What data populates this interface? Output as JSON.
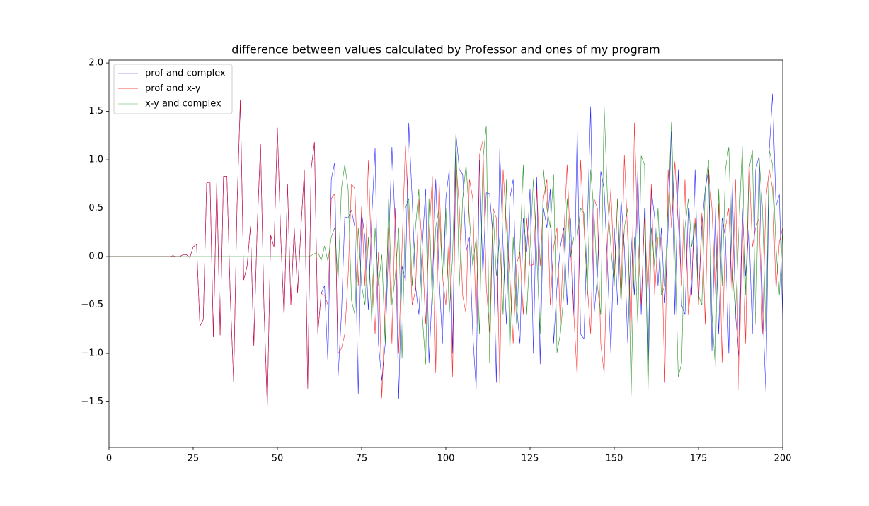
{
  "chart_data": {
    "type": "line",
    "title": "difference between values calculated by Professor and ones of my program",
    "x": [
      0,
      1,
      2,
      3,
      4,
      5,
      6,
      7,
      8,
      9,
      10,
      11,
      12,
      13,
      14,
      15,
      16,
      17,
      18,
      19,
      20,
      21,
      22,
      23,
      24,
      25,
      26,
      27,
      28,
      29,
      30,
      31,
      32,
      33,
      34,
      35,
      36,
      37,
      38,
      39,
      40,
      41,
      42,
      43,
      44,
      45,
      46,
      47,
      48,
      49,
      50,
      51,
      52,
      53,
      54,
      55,
      56,
      57,
      58,
      59,
      60,
      61,
      62,
      63,
      64,
      65,
      66,
      67,
      68,
      69,
      70,
      71,
      72,
      73,
      74,
      75,
      76,
      77,
      78,
      79,
      80,
      81,
      82,
      83,
      84,
      85,
      86,
      87,
      88,
      89,
      90,
      91,
      92,
      93,
      94,
      95,
      96,
      97,
      98,
      99,
      100,
      101,
      102,
      103,
      104,
      105,
      106,
      107,
      108,
      109,
      110,
      111,
      112,
      113,
      114,
      115,
      116,
      117,
      118,
      119,
      120,
      121,
      122,
      123,
      124,
      125,
      126,
      127,
      128,
      129,
      130,
      131,
      132,
      133,
      134,
      135,
      136,
      137,
      138,
      139,
      140,
      141,
      142,
      143,
      144,
      145,
      146,
      147,
      148,
      149,
      150,
      151,
      152,
      153,
      154,
      155,
      156,
      157,
      158,
      159,
      160,
      161,
      162,
      163,
      164,
      165,
      166,
      167,
      168,
      169,
      170,
      171,
      172,
      173,
      174,
      175,
      176,
      177,
      178,
      179,
      180,
      181,
      182,
      183,
      184,
      185,
      186,
      187,
      188,
      189,
      190,
      191,
      192,
      193,
      194,
      195,
      196,
      197,
      198,
      199,
      200
    ],
    "series": [
      {
        "name": "prof and complex",
        "color": "#0000ff",
        "values": [
          0,
          0,
          0,
          0,
          0,
          0,
          0,
          0,
          0,
          0,
          0,
          0,
          0,
          0,
          0,
          0,
          0,
          0,
          0,
          0.01,
          0,
          0,
          0.02,
          0.02,
          -0.01,
          0.1,
          0.13,
          -0.72,
          -0.65,
          0.76,
          0.77,
          -0.83,
          0.78,
          -0.81,
          0.83,
          0.83,
          -0.4,
          -1.29,
          0.5,
          1.62,
          -0.24,
          -0.1,
          0.31,
          -0.92,
          0.3,
          1.16,
          -0.5,
          -1.55,
          0.22,
          0.1,
          1.33,
          0.2,
          -0.63,
          0.75,
          -0.5,
          0.3,
          -0.37,
          0.3,
          0.89,
          -1.36,
          0.9,
          1.18,
          -0.79,
          -0.38,
          -0.3,
          -1.1,
          0.8,
          0.97,
          -1.25,
          -0.6,
          0.41,
          0.4,
          0.48,
          0.3,
          -1.42,
          0.45,
          0.2,
          -0.55,
          0.4,
          1.12,
          -0.9,
          -1.28,
          -0.9,
          0.1,
          1.13,
          0.3,
          -1.47,
          -0.1,
          -0.25,
          1.38,
          0.6,
          -0.3,
          -0.6,
          0.1,
          0.7,
          -1.1,
          -0.3,
          0.8,
          -0.2,
          -0.9,
          0.6,
          0.9,
          -1.0,
          1.27,
          0.9,
          0.85,
          0.05,
          0.2,
          -0.8,
          -1.37,
          1.0,
          -0.2,
          0.66,
          0.65,
          0.2,
          -1.3,
          1.11,
          0.1,
          -0.7,
          0.6,
          0.8,
          -0.5,
          -0.9,
          0.4,
          0.05,
          0.7,
          -1.0,
          0.82,
          -1.11,
          0.5,
          0.3,
          0.7,
          -0.9,
          -0.3,
          0.1,
          0.3,
          -0.5,
          0.4,
          -0.6,
          1.33,
          -0.8,
          -0.85,
          0.3,
          1.55,
          -0.6,
          -0.2,
          0.88,
          0.7,
          -0.1,
          -1.0,
          0.3,
          -0.5,
          0.6,
          0.1,
          -0.89,
          0.2,
          -0.4,
          0.9,
          -0.6,
          0.5,
          -1.19,
          0.7,
          0.4,
          -0.3,
          0.3,
          -0.48,
          0.3,
          1.3,
          -0.6,
          0.9,
          -0.5,
          -0.6,
          0.5,
          -0.4,
          0.9,
          -0.44,
          0.3,
          0.7,
          0.9,
          -0.97,
          0.5,
          -0.8,
          0.4,
          0.2,
          -1.0,
          0.8,
          -0.6,
          -1.03,
          0.5,
          -0.2,
          0.3,
          -0.8,
          0.9,
          1.04,
          -0.5,
          -1.39,
          1.1,
          1.68,
          0.52,
          0.64,
          -0.65
        ]
      },
      {
        "name": "prof and x-y",
        "color": "#ff0000",
        "values": [
          0,
          0,
          0,
          0,
          0,
          0,
          0,
          0,
          0,
          0,
          0,
          0,
          0,
          0,
          0,
          0,
          0,
          0,
          0,
          0.01,
          0,
          0,
          0.02,
          0.02,
          -0.01,
          0.1,
          0.13,
          -0.72,
          -0.65,
          0.76,
          0.77,
          -0.83,
          0.78,
          -0.81,
          0.83,
          0.83,
          -0.4,
          -1.29,
          0.5,
          1.62,
          -0.24,
          -0.1,
          0.31,
          -0.92,
          0.3,
          1.16,
          -0.5,
          -1.55,
          0.22,
          0.1,
          1.33,
          0.2,
          -0.63,
          0.75,
          -0.5,
          0.3,
          -0.37,
          0.3,
          0.89,
          -1.36,
          0.9,
          1.18,
          -0.79,
          -0.38,
          -0.4,
          -0.5,
          0.6,
          0.65,
          -1.0,
          -0.95,
          -0.8,
          -0.2,
          0.75,
          0.7,
          -0.3,
          0.52,
          -0.3,
          0.99,
          -0.1,
          -0.8,
          0.05,
          -1.46,
          -0.5,
          0.3,
          -0.9,
          0.5,
          -1.0,
          0.1,
          1.15,
          0.4,
          -0.5,
          -0.35,
          0.6,
          0.1,
          -0.7,
          0.2,
          0.83,
          -1.2,
          0.8,
          -0.2,
          -0.5,
          0.2,
          -1.24,
          1.0,
          0.5,
          -0.4,
          -0.59,
          0.8,
          0.6,
          -0.7,
          1.05,
          1.2,
          -0.3,
          -0.78,
          0.5,
          0.4,
          -1.31,
          0.9,
          0.3,
          -0.2,
          -0.9,
          -0.08,
          0.05,
          -0.6,
          0.4,
          -0.1,
          -0.08,
          0.7,
          -0.1,
          0.6,
          0.8,
          -0.5,
          0.1,
          0.3,
          -0.7,
          0.2,
          0.95,
          0.1,
          -0.6,
          -1.25,
          1.0,
          0.3,
          -0.3,
          -0.8,
          0.6,
          0.5,
          -0.9,
          -1.21,
          0.2,
          0.7,
          -0.2,
          0.6,
          -0.5,
          1.05,
          0.2,
          -0.8,
          1.38,
          0.2,
          -0.5,
          0.4,
          -0.4,
          0.75,
          -0.4,
          0.2,
          0.2,
          -1.3,
          0.9,
          0.3,
          0.98,
          0.35,
          -0.3,
          0.8,
          -0.6,
          -0.2,
          0.4,
          -0.5,
          0.45,
          -0.7,
          0.9,
          0.5,
          -0.4,
          0.55,
          -1.09,
          0.3,
          0.5,
          -0.4,
          0.8,
          -1.38,
          0.4,
          -0.9,
          1.0,
          0.1,
          0.3,
          0.4,
          -0.8,
          0.6,
          0.9,
          0.7,
          -0.35,
          0.15,
          0.3
        ]
      },
      {
        "name": "x-y and complex",
        "color": "#008000",
        "values": [
          0,
          0,
          0,
          0,
          0,
          0,
          0,
          0,
          0,
          0,
          0,
          0,
          0,
          0,
          0,
          0,
          0,
          0,
          0,
          0,
          0,
          0,
          0,
          0,
          0,
          0,
          0,
          0,
          0,
          0,
          0,
          0,
          0,
          0,
          0,
          0,
          0,
          0,
          0,
          0,
          0,
          0,
          0,
          0,
          0,
          0,
          0,
          0,
          0,
          0,
          0,
          0,
          0,
          0,
          0,
          0,
          0,
          0,
          0,
          0,
          0.01,
          0.03,
          0.05,
          -0.04,
          0.11,
          -0.05,
          0.2,
          0.3,
          -0.25,
          0.7,
          0.95,
          0.7,
          -0.45,
          -0.6,
          0.3,
          -0.3,
          -0.5,
          0.2,
          -0.68,
          0.3,
          -0.3,
          0.02,
          -0.9,
          0.6,
          -0.5,
          -0.2,
          0.3,
          -1.05,
          0.5,
          0.6,
          -0.3,
          0.3,
          0.7,
          -0.6,
          -1.11,
          0.6,
          -0.5,
          0.3,
          0.5,
          -0.2,
          0.5,
          -0.6,
          0.0,
          1.27,
          -0.3,
          0.6,
          0.95,
          0.4,
          -0.1,
          0.2,
          -0.8,
          1.0,
          1.35,
          -1.1,
          0.5,
          -0.2,
          0.2,
          -0.6,
          0.8,
          -1.0,
          0.2,
          -0.7,
          0.1,
          0.95,
          -0.6,
          0.1,
          0.8,
          0.0,
          -0.8,
          0.9,
          0.5,
          0.3,
          0.85,
          -0.99,
          -0.8,
          -0.4,
          0.6,
          0.0,
          0.2,
          0.2,
          0.5,
          0.45,
          -0.4,
          0.9,
          0.45,
          -0.3,
          -0.6,
          1.56,
          0.6,
          0.1,
          -0.3,
          0.6,
          -0.5,
          0.3,
          0.5,
          -1.44,
          0.2,
          -0.7,
          1.04,
          0.95,
          -1.43,
          0.3,
          -0.1,
          0.5,
          -0.4,
          -0.3,
          0.5,
          1.39,
          0.1,
          -1.24,
          -1.1,
          0.3,
          0.6,
          0.1,
          0.35,
          -0.4,
          -0.5,
          0.7,
          1.0,
          -0.6,
          -1.14,
          0.7,
          -0.3,
          0.9,
          1.13,
          -0.1,
          -0.6,
          0.3,
          1.14,
          -0.4,
          0.9,
          1.1,
          -0.7,
          1.02,
          0.5,
          -0.78,
          1.1,
          0.95,
          0.1,
          -0.4,
          0.3
        ]
      }
    ],
    "xlim": [
      0,
      200
    ],
    "xticks": [
      0,
      25,
      50,
      75,
      100,
      125,
      150,
      175,
      200
    ],
    "ylim": [
      -1.97,
      2.03
    ],
    "yticks": [
      {
        "value": -1.5,
        "label": "−1.5"
      },
      {
        "value": -1,
        "label": "−1.0"
      },
      {
        "value": -0.5,
        "label": "−0.5"
      },
      {
        "value": 0,
        "label": "0.0"
      },
      0.5,
      {
        "value": 1,
        "label": "1.0"
      },
      1.5,
      {
        "value": 2,
        "label": "2.0"
      }
    ],
    "grid": false,
    "legend": "upper left"
  }
}
